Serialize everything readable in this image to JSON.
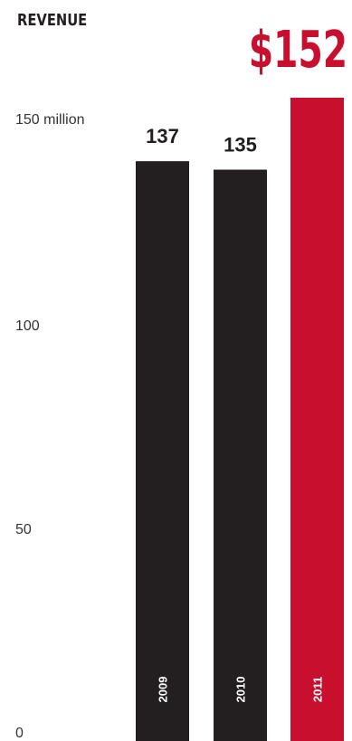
{
  "chart_data": {
    "type": "bar",
    "title": "REVENUE",
    "headline": "$152",
    "categories": [
      "2009",
      "2010",
      "2011"
    ],
    "values": [
      137,
      135,
      152
    ],
    "value_labels": [
      "137",
      "135",
      ""
    ],
    "y_ticks": [
      {
        "value": 0,
        "label": "0"
      },
      {
        "value": 50,
        "label": "50"
      },
      {
        "value": 100,
        "label": "100"
      },
      {
        "value": 150,
        "label": "150 million"
      }
    ],
    "ylim": [
      0,
      152
    ],
    "grid": false,
    "colors": {
      "default_bar": "#231f20",
      "highlight_bar": "#c8102e",
      "headline": "#c8102e"
    },
    "highlight_index": 2
  }
}
